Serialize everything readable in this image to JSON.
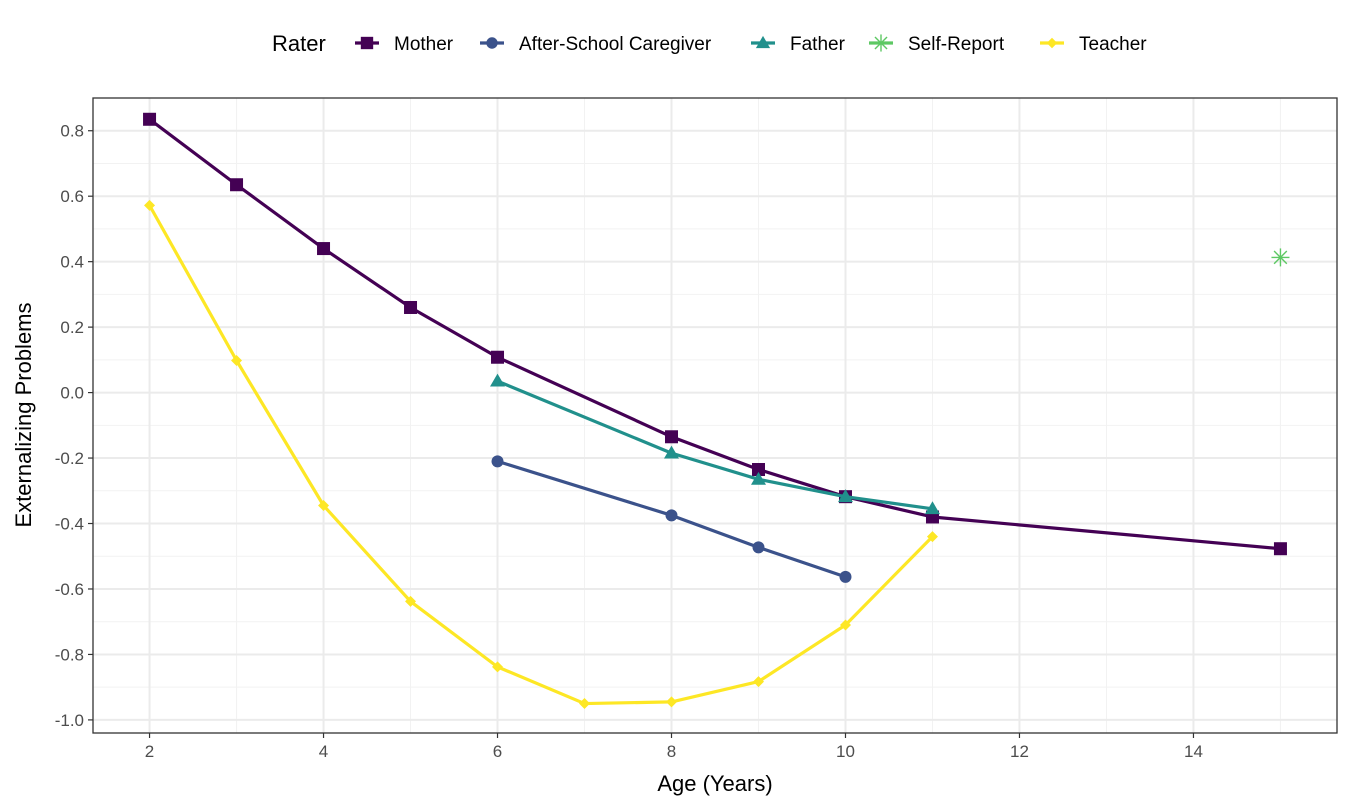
{
  "chart_data": {
    "type": "line",
    "xlabel": "Age (Years)",
    "ylabel": "Externalizing Problems",
    "xlim": [
      1.35,
      15.65
    ],
    "ylim": [
      -1.04,
      0.9
    ],
    "x_ticks": [
      2,
      4,
      6,
      8,
      10,
      12,
      14
    ],
    "y_ticks": [
      -1.0,
      -0.8,
      -0.6,
      -0.4,
      -0.2,
      0.0,
      0.2,
      0.4,
      0.6,
      0.8
    ],
    "y_tick_labels": [
      "-1.0",
      "-0.8",
      "-0.6",
      "-0.4",
      "-0.2",
      "0.0",
      "0.2",
      "0.4",
      "0.6",
      "0.8"
    ],
    "grid": true,
    "legend": {
      "title": "Rater",
      "position": "top"
    },
    "series": [
      {
        "name": "Mother",
        "color": "#440154",
        "marker": "square",
        "x": [
          2,
          3,
          4,
          5,
          6,
          8,
          9,
          10,
          11,
          15
        ],
        "y": [
          0.835,
          0.635,
          0.44,
          0.26,
          0.108,
          -0.135,
          -0.235,
          -0.318,
          -0.38,
          -0.477
        ]
      },
      {
        "name": "After-School Caregiver",
        "color": "#3B528B",
        "marker": "circle",
        "x": [
          6,
          8,
          9,
          10
        ],
        "y": [
          -0.21,
          -0.375,
          -0.473,
          -0.563
        ]
      },
      {
        "name": "Father",
        "color": "#21908C",
        "marker": "triangle",
        "x": [
          6,
          8,
          9,
          10,
          11
        ],
        "y": [
          0.035,
          -0.185,
          -0.265,
          -0.318,
          -0.355
        ]
      },
      {
        "name": "Self-Report",
        "color": "#5DC863",
        "marker": "asterisk",
        "x": [
          15
        ],
        "y": [
          0.413
        ]
      },
      {
        "name": "Teacher",
        "color": "#FDE725",
        "marker": "diamond",
        "x": [
          2,
          3,
          4,
          5,
          6,
          7,
          8,
          9,
          10,
          11
        ],
        "y": [
          0.572,
          0.098,
          -0.345,
          -0.638,
          -0.838,
          -0.95,
          -0.945,
          -0.883,
          -0.71,
          -0.44
        ]
      }
    ]
  }
}
